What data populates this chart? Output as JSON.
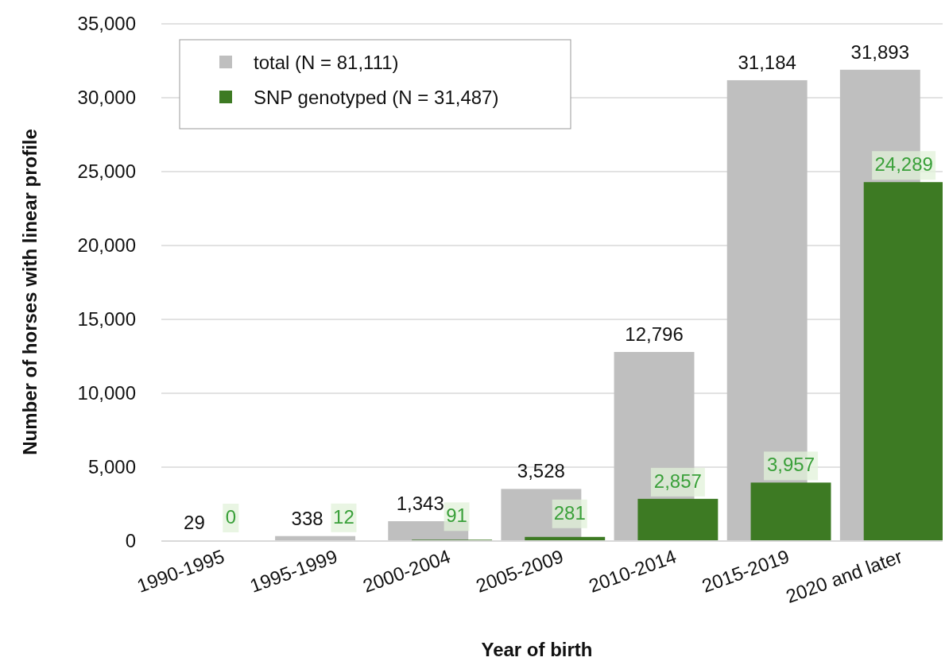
{
  "chart_data": {
    "type": "bar",
    "xlabel": "Year of birth",
    "ylabel": "Number of horses with linear profile",
    "categories": [
      "1990-1995",
      "1995-1999",
      "2000-2004",
      "2005-2009",
      "2010-2014",
      "2015-2019",
      "2020 and later"
    ],
    "series": [
      {
        "name": "total (N = 81,111)",
        "color": "#bfbfbf",
        "values": [
          29,
          338,
          1343,
          3528,
          12796,
          31184,
          31893
        ],
        "value_labels": [
          "29",
          "338",
          "1,343",
          "3,528",
          "12,796",
          "31,184",
          "31,893"
        ]
      },
      {
        "name": "SNP genotyped (N = 31,487)",
        "color": "#3d7a23",
        "values": [
          0,
          12,
          91,
          281,
          2857,
          3957,
          24289
        ],
        "value_labels": [
          "0",
          "12",
          "91",
          "281",
          "2,857",
          "3,957",
          "24,289"
        ]
      }
    ],
    "ylim": [
      0,
      35000
    ],
    "yticks": [
      0,
      {
        "value": 5000,
        "label": "5,000"
      },
      {
        "value": 10000,
        "label": "10,000"
      },
      {
        "value": 15000,
        "label": "15,000"
      },
      {
        "value": 20000,
        "label": "20,000"
      },
      {
        "value": 25000,
        "label": "25,000"
      },
      {
        "value": 30000,
        "label": "30,000"
      },
      {
        "value": 35000,
        "label": "35,000"
      }
    ],
    "grid": "y",
    "legend": "top left"
  }
}
